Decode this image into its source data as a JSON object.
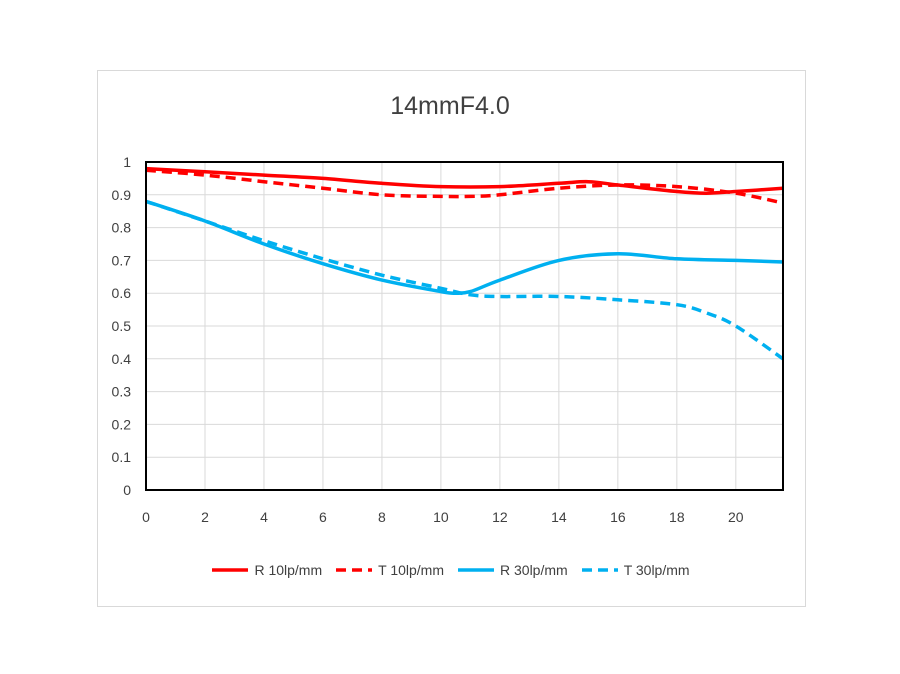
{
  "chart_data": {
    "type": "line",
    "title": "14mmF4.0",
    "xlabel": "",
    "ylabel": "",
    "xlim": [
      0,
      21.6
    ],
    "ylim": [
      0,
      1
    ],
    "x_ticks": [
      "0",
      "2",
      "4",
      "6",
      "8",
      "10",
      "12",
      "14",
      "16",
      "18",
      "20"
    ],
    "y_ticks": [
      "0",
      "0.1",
      "0.2",
      "0.3",
      "0.4",
      "0.5",
      "0.6",
      "0.7",
      "0.8",
      "0.9",
      "1"
    ],
    "grid": true,
    "legend_position": "bottom",
    "series": [
      {
        "name": "R 10lp/mm",
        "color": "#ff0000",
        "dash": "solid",
        "x": [
          0,
          2,
          4,
          6,
          8,
          10,
          12,
          14,
          15,
          16,
          18,
          19,
          20,
          21.6
        ],
        "y": [
          0.98,
          0.97,
          0.96,
          0.95,
          0.935,
          0.925,
          0.925,
          0.935,
          0.94,
          0.93,
          0.91,
          0.905,
          0.91,
          0.92
        ]
      },
      {
        "name": "T 10lp/mm",
        "color": "#ff0000",
        "dash": "dashed",
        "x": [
          0,
          2,
          4,
          6,
          8,
          10,
          11,
          12,
          14,
          16,
          18,
          20,
          21.6
        ],
        "y": [
          0.975,
          0.96,
          0.94,
          0.92,
          0.9,
          0.895,
          0.895,
          0.9,
          0.92,
          0.93,
          0.925,
          0.905,
          0.875
        ]
      },
      {
        "name": "R 30lp/mm",
        "color": "#00b0f0",
        "dash": "solid",
        "x": [
          0,
          2,
          4,
          6,
          8,
          10,
          10.5,
          11,
          12,
          14,
          16,
          18,
          20,
          21.6
        ],
        "y": [
          0.88,
          0.82,
          0.75,
          0.69,
          0.64,
          0.605,
          0.6,
          0.605,
          0.64,
          0.7,
          0.72,
          0.705,
          0.7,
          0.695
        ]
      },
      {
        "name": "T 30lp/mm",
        "color": "#00b0f0",
        "dash": "dashed",
        "x": [
          0,
          2,
          4,
          6,
          8,
          10,
          11,
          12,
          14,
          16,
          18,
          19,
          20,
          21.6
        ],
        "y": [
          0.88,
          0.82,
          0.76,
          0.705,
          0.655,
          0.615,
          0.595,
          0.59,
          0.59,
          0.58,
          0.565,
          0.54,
          0.5,
          0.4
        ]
      }
    ]
  }
}
